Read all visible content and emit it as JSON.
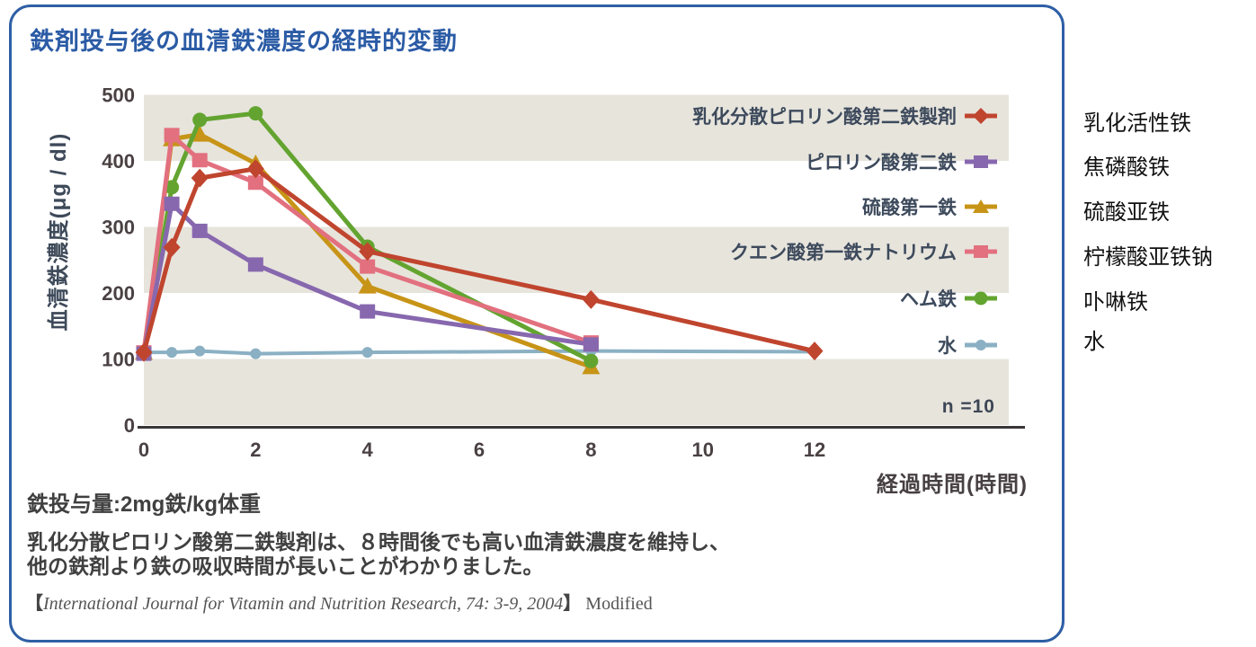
{
  "card": {
    "title": "鉄剤投与後の血清鉄濃度の経時的変動",
    "dose_note": "鉄投与量:2mg鉄/kg体重",
    "finding_line1": "乳化分散ピロリン酸第二鉄製剤は、８時間後でも高い血清鉄濃度を維持し、",
    "finding_line2": "他の鉄剤より鉄の吸収時間が長いことがわかりました。",
    "citation_open": "【",
    "citation_journal": "International Journal for Vitamin and Nutrition Research, 74: 3-9, 2004",
    "citation_close": "】",
    "citation_suffix": " Modified"
  },
  "chart_data": {
    "type": "line",
    "title": "鉄剤投与後の血清鉄濃度の経時的変動",
    "xlabel": "経過時間(時間)",
    "ylabel": "血清鉄濃度(μg / dl)",
    "xlim": [
      0,
      13.6
    ],
    "ylim": [
      0,
      500
    ],
    "x_ticks": [
      0,
      2,
      4,
      6,
      8,
      10,
      12
    ],
    "y_ticks": [
      0,
      100,
      200,
      300,
      400,
      500
    ],
    "annotation": "n =10",
    "grid": false,
    "band_color": "#e7e4dc",
    "bands": [
      [
        400,
        500
      ],
      [
        200,
        300
      ],
      [
        0,
        100
      ]
    ],
    "legend_position": "upper right inside plot",
    "series": [
      {
        "label": "乳化分散ピロリン酸第二鉄製剤",
        "color": "#c0452e",
        "marker": "diamond",
        "x": [
          0,
          0.5,
          1,
          2,
          4,
          8,
          12
        ],
        "values": [
          110,
          269,
          374,
          388,
          263,
          190,
          112
        ]
      },
      {
        "label": "ピロリン酸第二鉄",
        "color": "#8768ae",
        "marker": "square",
        "x": [
          0,
          0.5,
          1,
          2,
          4,
          8
        ],
        "values": [
          108,
          335,
          294,
          243,
          172,
          122
        ]
      },
      {
        "label": "硫酸第一鉄",
        "color": "#c79417",
        "marker": "triangle",
        "x": [
          0,
          0.5,
          1,
          2,
          4,
          8
        ],
        "values": [
          110,
          433,
          440,
          396,
          210,
          88
        ]
      },
      {
        "label": "クエン酸第一鉄ナトリウム",
        "color": "#e2707f",
        "marker": "square",
        "x": [
          0,
          0.5,
          1,
          2,
          4,
          8
        ],
        "values": [
          110,
          439,
          401,
          367,
          240,
          125
        ]
      },
      {
        "label": "ヘム鉄",
        "color": "#63a430",
        "marker": "circle",
        "x": [
          0,
          0.5,
          1,
          2,
          4,
          8
        ],
        "values": [
          110,
          360,
          462,
          472,
          270,
          97
        ]
      },
      {
        "label": "水",
        "color": "#8bb0c3",
        "marker": "circle-sm",
        "x": [
          0,
          0.5,
          1,
          2,
          4,
          8,
          12
        ],
        "values": [
          110,
          110,
          112,
          108,
          110,
          112,
          111
        ]
      }
    ]
  },
  "right_labels": [
    "乳化活性铁",
    "焦磷酸铁",
    "硫酸亚铁",
    "柠檬酸亚铁钠",
    "卟啉铁",
    "水"
  ]
}
